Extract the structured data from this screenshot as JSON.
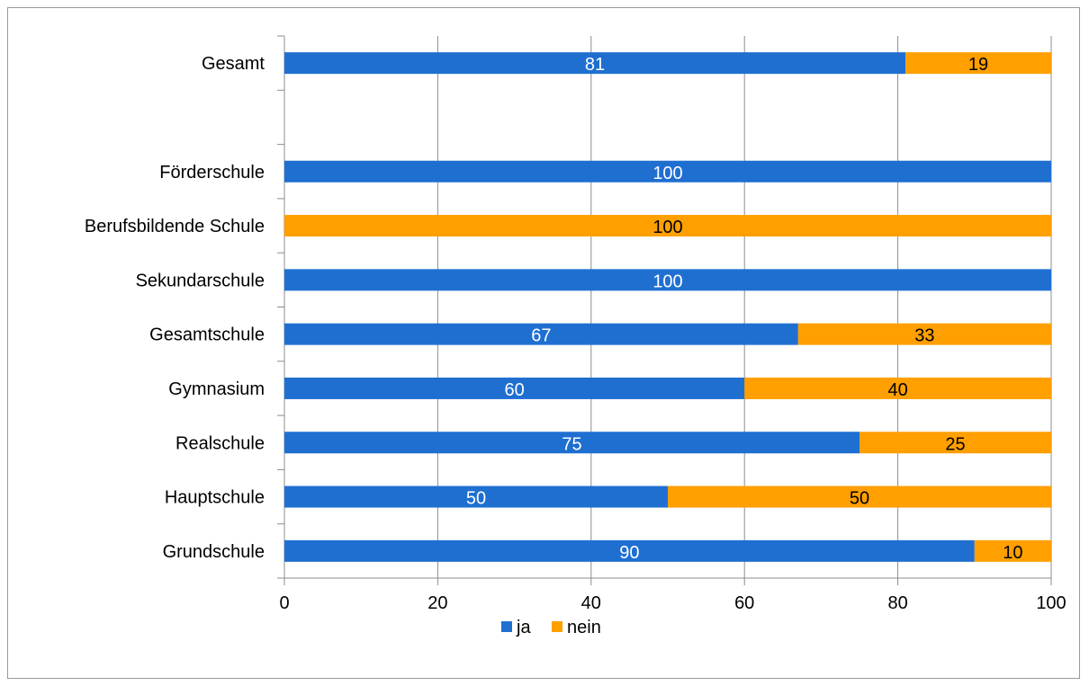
{
  "chart_data": {
    "type": "bar",
    "orientation": "horizontal",
    "stacked": true,
    "categories": [
      "Gesamt",
      "",
      "Förderschule",
      "Berufsbildende Schule",
      "Sekundarschule",
      "Gesamtschule",
      "Gymnasium",
      "Realschule",
      "Hauptschule",
      "Grundschule"
    ],
    "series": [
      {
        "name": "ja",
        "color": "#1f6fd1",
        "values": [
          81,
          null,
          100,
          0,
          100,
          67,
          60,
          75,
          50,
          90
        ]
      },
      {
        "name": "nein",
        "color": "#ff9f00",
        "values": [
          19,
          null,
          0,
          100,
          0,
          33,
          40,
          25,
          50,
          10
        ]
      }
    ],
    "xlim": [
      0,
      100
    ],
    "xticks": [
      "0",
      "20",
      "40",
      "60",
      "80",
      "100"
    ],
    "grid": true,
    "legend_position": "bottom"
  }
}
